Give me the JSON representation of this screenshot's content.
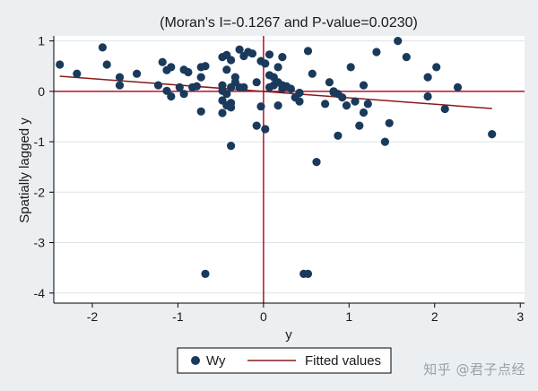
{
  "chart_data": {
    "type": "scatter",
    "title": "(Moran's I=-0.1267 and P-value=0.0230)",
    "xlabel": "y",
    "ylabel": "Spatially lagged y",
    "xlim": [
      -2.45,
      3.05
    ],
    "ylim": [
      -4.2,
      1.1
    ],
    "xticks": [
      -2,
      -1,
      0,
      1,
      2,
      3
    ],
    "yticks": [
      1,
      0,
      -1,
      -2,
      -3,
      -4
    ],
    "xtick_labels": [
      "-2",
      "-1",
      "0",
      "1",
      "2",
      "3"
    ],
    "ytick_labels": [
      "1",
      "0",
      "-1",
      "-2",
      "-3",
      "-4"
    ],
    "grid": "horizontal",
    "reference_lines": {
      "x": 0,
      "y": 0
    },
    "legend_position": "bottom",
    "series": [
      {
        "name": "Wy",
        "kind": "scatter",
        "points": [
          [
            -2.38,
            0.53
          ],
          [
            -2.18,
            0.35
          ],
          [
            -1.88,
            0.87
          ],
          [
            -1.83,
            0.53
          ],
          [
            -1.68,
            0.28
          ],
          [
            -1.68,
            0.12
          ],
          [
            -1.48,
            0.35
          ],
          [
            -1.23,
            0.12
          ],
          [
            -1.18,
            0.58
          ],
          [
            -1.13,
            0.42
          ],
          [
            -1.13,
            0.01
          ],
          [
            -1.08,
            0.48
          ],
          [
            -1.08,
            -0.1
          ],
          [
            -0.98,
            0.08
          ],
          [
            -0.93,
            0.43
          ],
          [
            -0.93,
            -0.05
          ],
          [
            -0.88,
            0.38
          ],
          [
            -0.83,
            0.08
          ],
          [
            -0.78,
            0.1
          ],
          [
            -0.73,
            0.48
          ],
          [
            -0.73,
            0.28
          ],
          [
            -0.68,
            0.5
          ],
          [
            -0.73,
            -0.4
          ],
          [
            -0.68,
            -3.62
          ],
          [
            -0.48,
            0.68
          ],
          [
            -0.48,
            0.12
          ],
          [
            -0.48,
            0.01
          ],
          [
            -0.48,
            -0.18
          ],
          [
            -0.48,
            -0.43
          ],
          [
            -0.43,
            0.72
          ],
          [
            -0.43,
            0.43
          ],
          [
            -0.43,
            -0.05
          ],
          [
            -0.43,
            -0.28
          ],
          [
            -0.38,
            0.62
          ],
          [
            -0.38,
            0.08
          ],
          [
            -0.38,
            -0.23
          ],
          [
            -0.38,
            -0.32
          ],
          [
            -0.38,
            -1.08
          ],
          [
            -0.33,
            0.28
          ],
          [
            -0.33,
            0.18
          ],
          [
            -0.28,
            0.83
          ],
          [
            -0.28,
            0.08
          ],
          [
            -0.23,
            0.7
          ],
          [
            -0.23,
            0.08
          ],
          [
            -0.18,
            0.78
          ],
          [
            -0.13,
            0.75
          ],
          [
            -0.08,
            0.18
          ],
          [
            -0.08,
            -0.68
          ],
          [
            -0.03,
            0.6
          ],
          [
            -0.03,
            -0.3
          ],
          [
            0.02,
            0.55
          ],
          [
            0.02,
            -0.75
          ],
          [
            0.07,
            0.73
          ],
          [
            0.07,
            0.32
          ],
          [
            0.07,
            0.08
          ],
          [
            0.12,
            0.28
          ],
          [
            0.12,
            0.12
          ],
          [
            0.17,
            0.48
          ],
          [
            0.17,
            0.18
          ],
          [
            0.17,
            -0.28
          ],
          [
            0.22,
            0.68
          ],
          [
            0.22,
            0.12
          ],
          [
            0.22,
            0.05
          ],
          [
            0.27,
            0.1
          ],
          [
            0.32,
            0.05
          ],
          [
            0.37,
            -0.12
          ],
          [
            0.42,
            -0.03
          ],
          [
            0.42,
            -0.2
          ],
          [
            0.47,
            -3.62
          ],
          [
            0.52,
            -3.62
          ],
          [
            0.52,
            0.8
          ],
          [
            0.57,
            0.35
          ],
          [
            0.62,
            -1.4
          ],
          [
            0.72,
            -0.25
          ],
          [
            0.77,
            0.18
          ],
          [
            0.82,
            0.0
          ],
          [
            0.82,
            -0.02
          ],
          [
            0.87,
            -0.05
          ],
          [
            0.87,
            -0.88
          ],
          [
            0.92,
            -0.12
          ],
          [
            0.97,
            -0.28
          ],
          [
            1.02,
            0.48
          ],
          [
            1.07,
            -0.2
          ],
          [
            1.12,
            -0.68
          ],
          [
            1.17,
            -0.42
          ],
          [
            1.17,
            0.12
          ],
          [
            1.22,
            -0.25
          ],
          [
            1.32,
            0.78
          ],
          [
            1.42,
            -1.0
          ],
          [
            1.47,
            -0.63
          ],
          [
            1.57,
            1.0
          ],
          [
            1.67,
            0.68
          ],
          [
            1.92,
            -0.1
          ],
          [
            1.92,
            0.28
          ],
          [
            2.02,
            0.48
          ],
          [
            2.12,
            -0.35
          ],
          [
            2.27,
            0.08
          ],
          [
            2.67,
            -0.85
          ]
        ]
      },
      {
        "name": "Fitted values",
        "kind": "line",
        "points": [
          [
            -2.38,
            0.3
          ],
          [
            2.67,
            -0.34
          ]
        ]
      }
    ]
  },
  "legend": {
    "items": [
      {
        "label": "Wy"
      },
      {
        "label": "Fitted values"
      }
    ]
  },
  "watermark": {
    "text": "知乎 @君子点经"
  },
  "colors": {
    "background": "#ebeff2",
    "plot_background": "#ffffff",
    "marker": "#1a3a5c",
    "fit_line": "#8b1a1a",
    "reference_line": "#b8102a",
    "grid": "#dde3e8",
    "axis": "#000000"
  }
}
